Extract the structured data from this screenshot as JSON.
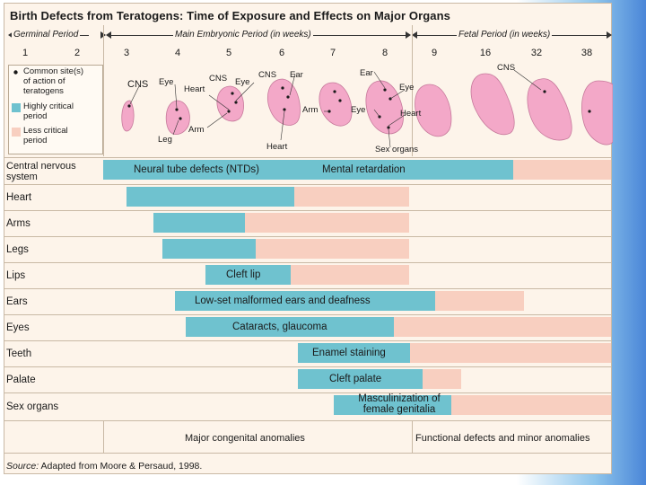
{
  "title": "Birth Defects from Teratogens: Time of Exposure and Effects on Major Organs",
  "periods": {
    "germinal": "Germinal Period",
    "embryonic": "Main Embryonic Period (in weeks)",
    "fetal": "Fetal Period (in weeks)"
  },
  "weeks": [
    "1",
    "2",
    "3",
    "4",
    "5",
    "6",
    "7",
    "8",
    "9",
    "16",
    "32",
    "38"
  ],
  "legend": {
    "sites_line1": "Common site(s)",
    "sites_line2": "of action of",
    "sites_line3": "teratogens",
    "high_line1": "Highly critical",
    "high_line2": "period",
    "low_line1": "Less critical",
    "low_line2": "period"
  },
  "embryo_labels": {
    "cns1": "CNS",
    "eye1": "Eye",
    "leg": "Leg",
    "heart1": "Heart",
    "arm1": "Arm",
    "cns2": "CNS",
    "eye2": "Eye",
    "cns3": "CNS",
    "ear1": "Ear",
    "heart2": "Heart",
    "arm2": "Arm",
    "ear2": "Ear",
    "eye3": "Eye",
    "eye4": "Eye",
    "heart3": "Heart",
    "sex": "Sex organs",
    "cns4": "CNS"
  },
  "rows": [
    {
      "organ_line1": "Central nervous",
      "organ_line2": "system",
      "bar_text": "Neural tube defects (NTDs)",
      "bar_text2": "Mental retardation"
    },
    {
      "organ_line1": "Heart"
    },
    {
      "organ_line1": "Arms"
    },
    {
      "organ_line1": "Legs"
    },
    {
      "organ_line1": "Lips",
      "bar_text": "Cleft lip"
    },
    {
      "organ_line1": "Ears",
      "bar_text": "Low-set malformed ears and deafness"
    },
    {
      "organ_line1": "Eyes",
      "bar_text": "Cataracts, glaucoma"
    },
    {
      "organ_line1": "Teeth",
      "bar_text": "Enamel staining"
    },
    {
      "organ_line1": "Palate",
      "bar_text": "Cleft palate"
    },
    {
      "organ_line1": "Sex organs",
      "bar_text_line1": "Masculinization of",
      "bar_text_line2": "female genitalia"
    }
  ],
  "footer": {
    "major": "Major congenital anomalies",
    "functional": "Functional defects and minor anomalies",
    "source_label": "Source:",
    "source_text": "Adapted from Moore & Persaud, 1998."
  },
  "colors": {
    "highly_critical": "#6fc2cf",
    "less_critical": "#f8cfc0",
    "embryo": "#f3a8c8",
    "background": "#fdf4ea"
  }
}
